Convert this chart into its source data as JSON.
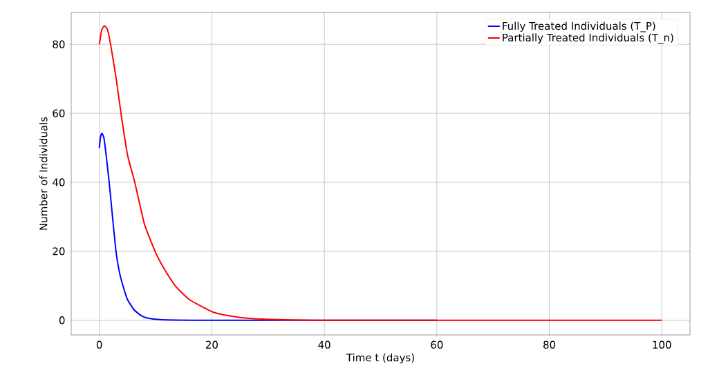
{
  "chart_data": {
    "type": "line",
    "xlabel": "Time t (days)",
    "ylabel": "Number of Individuals",
    "xlim": [
      -5,
      105
    ],
    "ylim": [
      -4.25,
      89.25
    ],
    "xticks": [
      0,
      20,
      40,
      60,
      80,
      100
    ],
    "yticks": [
      0,
      20,
      40,
      60,
      80
    ],
    "grid": true,
    "legend": "top right",
    "series": [
      {
        "name": "Fully Treated Individuals (T_P)",
        "color": "#0000ff",
        "x": [
          0,
          0.2,
          0.45,
          0.8,
          1.2,
          1.75,
          2.4,
          2.96,
          3.5,
          4.2,
          5,
          6.2,
          7.5,
          9,
          12,
          20,
          40,
          60
        ],
        "values": [
          50,
          53,
          54.2,
          53,
          48,
          40,
          29,
          20,
          14.5,
          10,
          6,
          3,
          1.3,
          0.5,
          0.1,
          0,
          0,
          0
        ]
      },
      {
        "name": "Partially Treated Individuals (T_n)",
        "color": "#ff0000",
        "x": [
          0,
          0.4,
          0.85,
          1.4,
          2,
          3,
          3.85,
          5,
          6.3,
          8,
          9.9,
          11.5,
          13.5,
          16,
          20,
          23,
          27,
          32,
          40,
          60,
          80,
          100
        ],
        "values": [
          80,
          84,
          85.3,
          84.5,
          80,
          70,
          60,
          48,
          40,
          28,
          20,
          15,
          10,
          6,
          2.5,
          1.3,
          0.5,
          0.2,
          0,
          0,
          0,
          0
        ]
      }
    ]
  }
}
